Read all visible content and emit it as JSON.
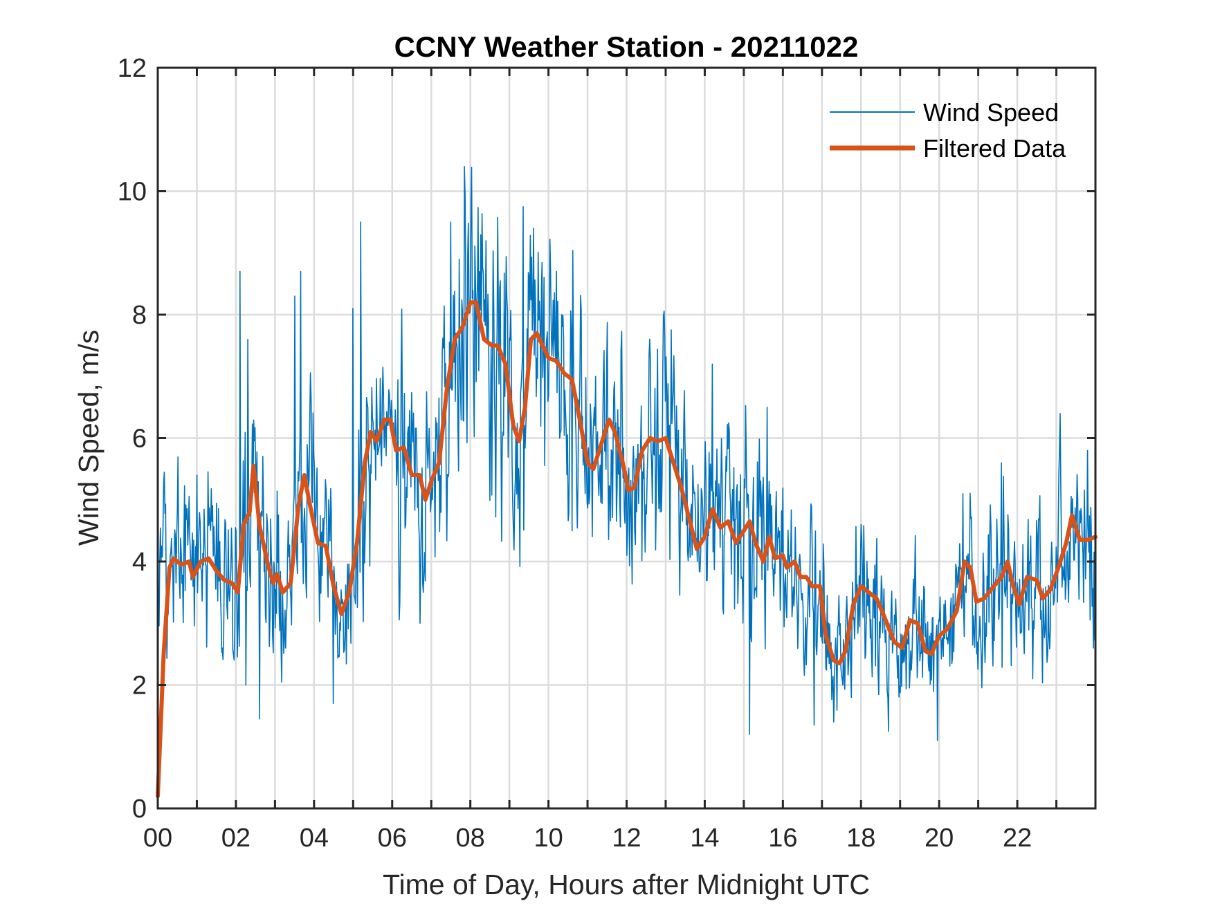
{
  "chart_data": {
    "type": "line",
    "title": "CCNY Weather Station - 20211022",
    "xlabel": "Time of Day, Hours after Midnight UTC",
    "ylabel": "Wind Speed, m/s",
    "xlim": [
      0,
      24
    ],
    "ylim": [
      0,
      12
    ],
    "x_ticks": [
      0,
      2,
      4,
      6,
      8,
      10,
      12,
      14,
      16,
      18,
      20,
      22
    ],
    "x_tick_labels": [
      "00",
      "02",
      "04",
      "06",
      "08",
      "10",
      "12",
      "14",
      "16",
      "18",
      "20",
      "22"
    ],
    "x_minor_ticks_every_hours": 1,
    "y_ticks": [
      0,
      2,
      4,
      6,
      8,
      10,
      12
    ],
    "y_tick_labels": [
      "0",
      "2",
      "4",
      "6",
      "8",
      "10",
      "12"
    ],
    "grid": true,
    "grid_x_every_hours": 1,
    "grid_y_every": 2,
    "legend_position": "top-right",
    "series": [
      {
        "name": "Wind Speed",
        "color": "#0072BD",
        "style": "thin-line",
        "note": "dense ~1-min samples; noisy raw series around filtered curve",
        "sample_interval_hours": 0.0167,
        "notable_points": [
          {
            "x": 0.0,
            "y": 4.5
          },
          {
            "x": 0.5,
            "y": 4.85
          },
          {
            "x": 1.0,
            "y": 5.4
          },
          {
            "x": 2.1,
            "y": 8.7
          },
          {
            "x": 2.3,
            "y": 7.6
          },
          {
            "x": 2.6,
            "y": 1.45
          },
          {
            "x": 2.25,
            "y": 2.0
          },
          {
            "x": 3.5,
            "y": 8.3
          },
          {
            "x": 3.65,
            "y": 8.7
          },
          {
            "x": 4.5,
            "y": 1.7
          },
          {
            "x": 5.2,
            "y": 9.5
          },
          {
            "x": 5.0,
            "y": 8.1
          },
          {
            "x": 6.8,
            "y": 3.5
          },
          {
            "x": 7.5,
            "y": 9.5
          },
          {
            "x": 7.85,
            "y": 10.4
          },
          {
            "x": 8.4,
            "y": 9.2
          },
          {
            "x": 9.1,
            "y": 4.5
          },
          {
            "x": 9.35,
            "y": 9.75
          },
          {
            "x": 10.6,
            "y": 4.5
          },
          {
            "x": 11.2,
            "y": 7.0
          },
          {
            "x": 12.0,
            "y": 4.1
          },
          {
            "x": 13.0,
            "y": 6.6
          },
          {
            "x": 14.2,
            "y": 7.2
          },
          {
            "x": 15.15,
            "y": 1.2
          },
          {
            "x": 15.6,
            "y": 6.5
          },
          {
            "x": 16.8,
            "y": 1.35
          },
          {
            "x": 17.3,
            "y": 1.4
          },
          {
            "x": 18.0,
            "y": 4.6
          },
          {
            "x": 18.7,
            "y": 1.25
          },
          {
            "x": 19.95,
            "y": 1.1
          },
          {
            "x": 20.6,
            "y": 5.1
          },
          {
            "x": 21.6,
            "y": 5.6
          },
          {
            "x": 22.4,
            "y": 2.1
          },
          {
            "x": 23.1,
            "y": 6.4
          },
          {
            "x": 23.95,
            "y": 2.6
          }
        ]
      },
      {
        "name": "Filtered Data",
        "color": "#D95319",
        "style": "thick-line",
        "points": [
          [
            0.0,
            0.2
          ],
          [
            0.15,
            2.5
          ],
          [
            0.3,
            3.9
          ],
          [
            0.4,
            4.05
          ],
          [
            0.6,
            3.95
          ],
          [
            0.8,
            4.0
          ],
          [
            0.9,
            3.75
          ],
          [
            1.1,
            4.0
          ],
          [
            1.3,
            4.05
          ],
          [
            1.5,
            3.85
          ],
          [
            1.7,
            3.7
          ],
          [
            1.9,
            3.65
          ],
          [
            2.05,
            3.5
          ],
          [
            2.2,
            4.6
          ],
          [
            2.35,
            4.8
          ],
          [
            2.45,
            5.55
          ],
          [
            2.6,
            4.6
          ],
          [
            2.8,
            4.0
          ],
          [
            2.95,
            3.65
          ],
          [
            3.05,
            3.8
          ],
          [
            3.2,
            3.5
          ],
          [
            3.4,
            3.65
          ],
          [
            3.6,
            4.9
          ],
          [
            3.75,
            5.4
          ],
          [
            3.9,
            4.9
          ],
          [
            4.1,
            4.3
          ],
          [
            4.3,
            4.25
          ],
          [
            4.5,
            3.6
          ],
          [
            4.7,
            3.15
          ],
          [
            4.9,
            3.5
          ],
          [
            5.1,
            4.3
          ],
          [
            5.3,
            5.6
          ],
          [
            5.45,
            6.1
          ],
          [
            5.6,
            5.95
          ],
          [
            5.8,
            6.3
          ],
          [
            5.95,
            6.3
          ],
          [
            6.1,
            5.8
          ],
          [
            6.3,
            5.85
          ],
          [
            6.5,
            5.4
          ],
          [
            6.7,
            5.4
          ],
          [
            6.85,
            5.0
          ],
          [
            7.0,
            5.3
          ],
          [
            7.2,
            5.6
          ],
          [
            7.4,
            6.8
          ],
          [
            7.6,
            7.6
          ],
          [
            7.8,
            7.8
          ],
          [
            8.0,
            8.2
          ],
          [
            8.15,
            8.2
          ],
          [
            8.35,
            7.6
          ],
          [
            8.55,
            7.5
          ],
          [
            8.7,
            7.5
          ],
          [
            8.9,
            7.2
          ],
          [
            9.1,
            6.2
          ],
          [
            9.25,
            5.95
          ],
          [
            9.4,
            6.5
          ],
          [
            9.55,
            7.6
          ],
          [
            9.7,
            7.7
          ],
          [
            9.85,
            7.5
          ],
          [
            10.0,
            7.3
          ],
          [
            10.2,
            7.25
          ],
          [
            10.4,
            7.05
          ],
          [
            10.6,
            6.95
          ],
          [
            10.8,
            6.3
          ],
          [
            11.0,
            5.6
          ],
          [
            11.15,
            5.5
          ],
          [
            11.35,
            5.9
          ],
          [
            11.55,
            6.3
          ],
          [
            11.7,
            6.1
          ],
          [
            11.9,
            5.6
          ],
          [
            12.05,
            5.15
          ],
          [
            12.2,
            5.2
          ],
          [
            12.4,
            5.8
          ],
          [
            12.6,
            6.0
          ],
          [
            12.8,
            5.95
          ],
          [
            13.0,
            6.0
          ],
          [
            13.15,
            5.7
          ],
          [
            13.4,
            5.2
          ],
          [
            13.6,
            4.7
          ],
          [
            13.8,
            4.2
          ],
          [
            14.0,
            4.4
          ],
          [
            14.2,
            4.85
          ],
          [
            14.4,
            4.55
          ],
          [
            14.6,
            4.65
          ],
          [
            14.8,
            4.3
          ],
          [
            15.0,
            4.5
          ],
          [
            15.15,
            4.65
          ],
          [
            15.3,
            4.3
          ],
          [
            15.5,
            4.0
          ],
          [
            15.65,
            4.4
          ],
          [
            15.8,
            4.05
          ],
          [
            16.0,
            4.1
          ],
          [
            16.1,
            3.9
          ],
          [
            16.3,
            4.0
          ],
          [
            16.45,
            3.75
          ],
          [
            16.6,
            3.75
          ],
          [
            16.75,
            3.6
          ],
          [
            16.95,
            3.6
          ],
          [
            17.1,
            2.8
          ],
          [
            17.3,
            2.4
          ],
          [
            17.45,
            2.35
          ],
          [
            17.6,
            2.55
          ],
          [
            17.8,
            3.3
          ],
          [
            18.0,
            3.6
          ],
          [
            18.2,
            3.5
          ],
          [
            18.4,
            3.4
          ],
          [
            18.6,
            3.1
          ],
          [
            18.85,
            2.7
          ],
          [
            19.05,
            2.6
          ],
          [
            19.25,
            3.05
          ],
          [
            19.45,
            3.0
          ],
          [
            19.65,
            2.55
          ],
          [
            19.8,
            2.5
          ],
          [
            20.0,
            2.8
          ],
          [
            20.2,
            2.9
          ],
          [
            20.45,
            3.2
          ],
          [
            20.65,
            4.0
          ],
          [
            20.8,
            3.9
          ],
          [
            20.95,
            3.35
          ],
          [
            21.15,
            3.4
          ],
          [
            21.4,
            3.6
          ],
          [
            21.6,
            3.75
          ],
          [
            21.75,
            4.0
          ],
          [
            21.9,
            3.6
          ],
          [
            22.05,
            3.3
          ],
          [
            22.25,
            3.75
          ],
          [
            22.5,
            3.7
          ],
          [
            22.65,
            3.4
          ],
          [
            22.85,
            3.55
          ],
          [
            23.05,
            3.9
          ],
          [
            23.25,
            4.3
          ],
          [
            23.4,
            4.75
          ],
          [
            23.6,
            4.35
          ],
          [
            23.8,
            4.35
          ],
          [
            24.0,
            4.4
          ]
        ]
      }
    ]
  }
}
